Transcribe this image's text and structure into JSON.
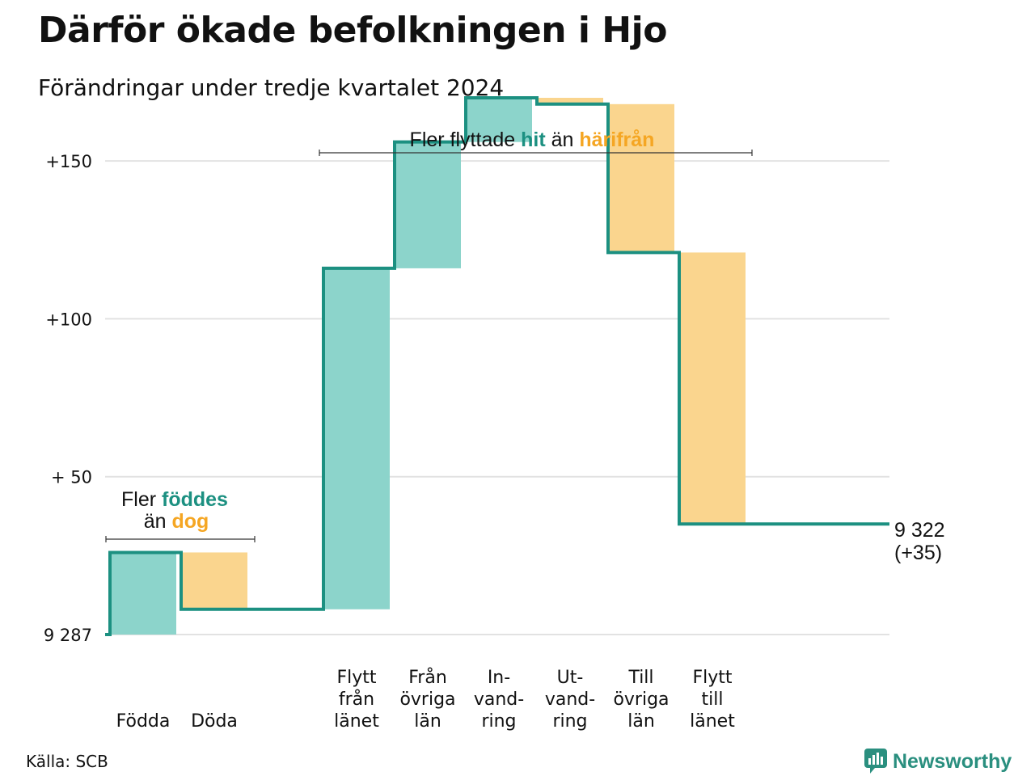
{
  "title": "Därför ökade befolkningen i Hjo",
  "subtitle": "Förändringar under tredje kvartalet 2024",
  "source": "Källa: SCB",
  "brand": "Newsworthy",
  "colors": {
    "increase": "#8cd4cb",
    "decrease": "#fad58e",
    "line": "#1c9081",
    "accent_teal": "#1c9081",
    "accent_orange": "#f5a623",
    "grid": "#e2e2e2"
  },
  "annotations": {
    "births": {
      "line1_pre": "Fler ",
      "line1_hl": "föddes",
      "line2_pre": "än ",
      "line2_hl": "dog"
    },
    "migration": {
      "pre": "Fler flyttade ",
      "hl1": "hit",
      "mid": " än ",
      "hl2": "härifrån"
    }
  },
  "end_label": {
    "value": "9 322",
    "change": "(+35)"
  },
  "chart_data": {
    "type": "waterfall",
    "title": "Därför ökade befolkningen i Hjo",
    "subtitle": "Förändringar under tredje kvartalet 2024",
    "start_value": 9287,
    "end_value": 9322,
    "net_change": 35,
    "ylim": [
      0,
      170
    ],
    "y_ticks": [
      {
        "value": 0,
        "label": "9 287"
      },
      {
        "value": 50,
        "label": "+ 50"
      },
      {
        "value": 100,
        "label": "+100"
      },
      {
        "value": 150,
        "label": "+150"
      }
    ],
    "grid": true,
    "categories": [
      [
        "Födda"
      ],
      [
        "Döda"
      ],
      [],
      [
        "Flytt",
        "från",
        "länet"
      ],
      [
        "Från",
        "övriga",
        "län"
      ],
      [
        "In-",
        "vand-",
        "ring"
      ],
      [
        "Ut-",
        "vand-",
        "ring"
      ],
      [
        "Till",
        "övriga",
        "län"
      ],
      [
        "Flytt",
        "till",
        "länet"
      ],
      []
    ],
    "changes": [
      26,
      -18,
      0,
      108,
      40,
      14,
      -2,
      -47,
      -86,
      0
    ]
  }
}
